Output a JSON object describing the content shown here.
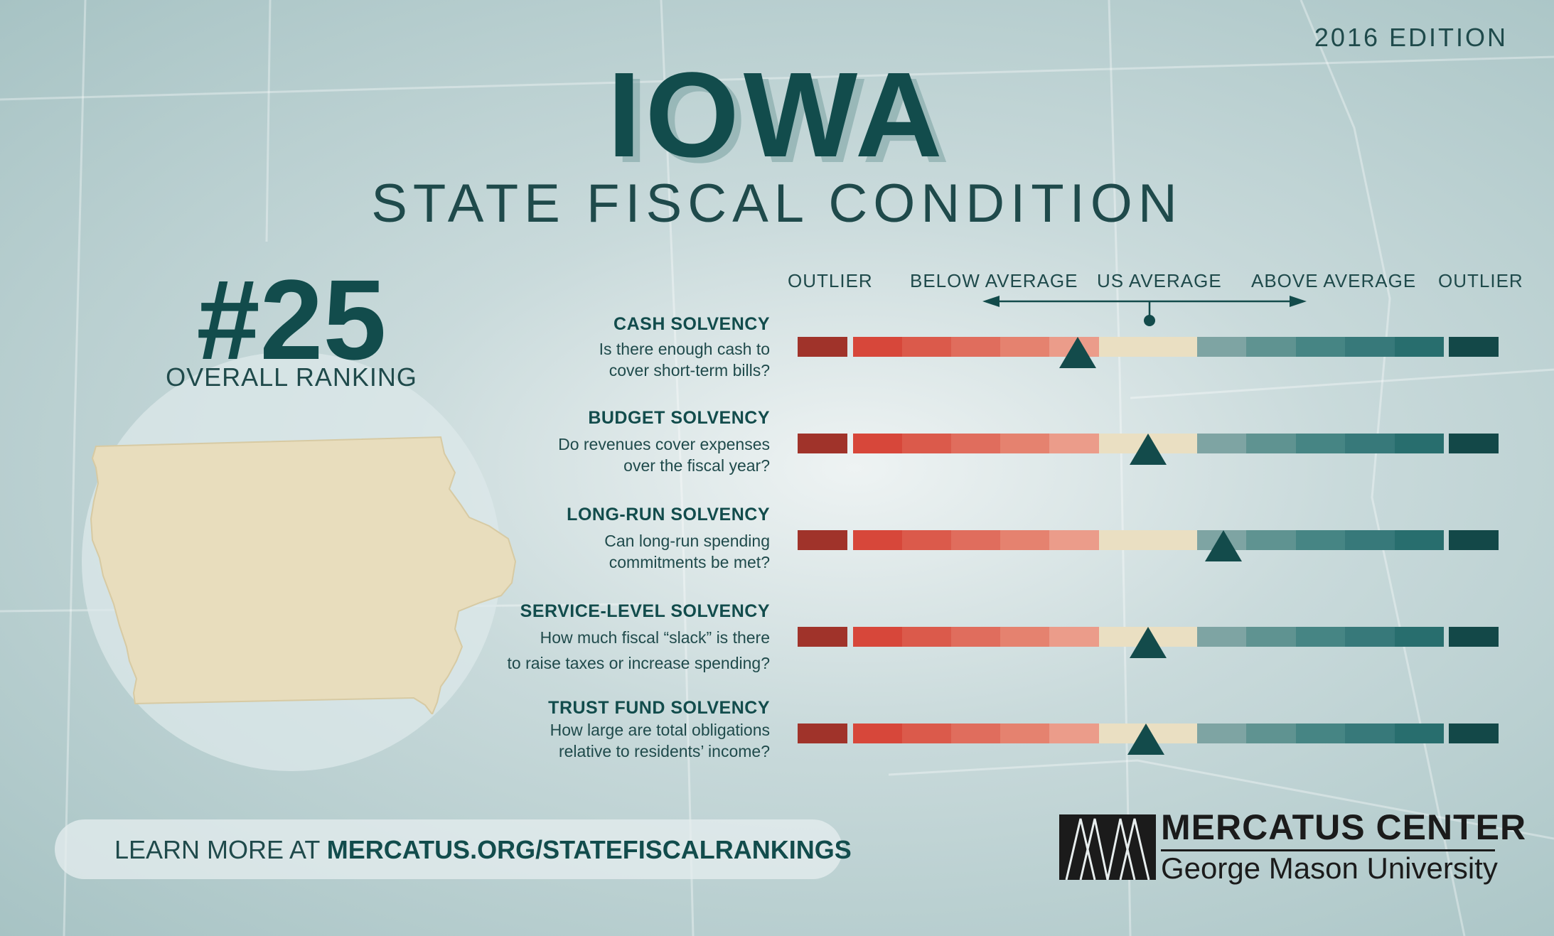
{
  "edition": "2016 EDITION",
  "title": "IOWA",
  "subtitle": "STATE FISCAL CONDITION",
  "ranking": {
    "number": "#25",
    "label": "OVERALL RANKING"
  },
  "scale": {
    "labels": [
      "OUTLIER",
      "BELOW AVERAGE",
      "US AVERAGE",
      "ABOVE AVERAGE",
      "OUTLIER"
    ],
    "segment_colors": [
      "#a0332a",
      "#d7473a",
      "#db5a4b",
      "#e06d5d",
      "#e5826f",
      "#eb9c8a",
      "#eadfc2",
      "#7ea4a3",
      "#5f9391",
      "#468584",
      "#37797a",
      "#286e6e",
      "#1b5f5f",
      "#134848"
    ]
  },
  "metrics": [
    {
      "title": "CASH SOLVENCY",
      "question_line1": "Is there enough cash to",
      "question_line2": "cover short-term bills?",
      "position": 0.4
    },
    {
      "title": "BUDGET SOLVENCY",
      "question_line1": "Do revenues cover expenses",
      "question_line2": "over the fiscal year?",
      "position": 0.5
    },
    {
      "title": "LONG-RUN SOLVENCY",
      "question_line1": "Can long-run spending",
      "question_line2": "commitments be met?",
      "position": 0.607
    },
    {
      "title": "SERVICE-LEVEL SOLVENCY",
      "question_line1": "How much fiscal “slack” is there",
      "question_line2": "to raise taxes or increase spending?",
      "position": 0.5
    },
    {
      "title": "TRUST FUND SOLVENCY",
      "question_line1": "How large are total obligations",
      "question_line2": "relative to residents’ income?",
      "position": 0.497
    }
  ],
  "learn_more": {
    "prefix": "LEARN MORE AT ",
    "url": "MERCATUS.ORG/STATEFISCALRANKINGS"
  },
  "logo": {
    "name": "MERCATUS CENTER",
    "sub": "George Mason University"
  }
}
